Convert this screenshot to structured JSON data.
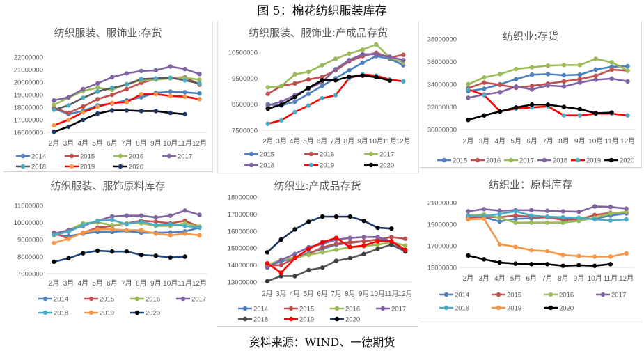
{
  "figure_title": "图 5：棉花纺织服装库存",
  "source": "资料来源：WIND、一德期货",
  "months": [
    "2月",
    "3月",
    "4月",
    "5月",
    "6月",
    "7月",
    "8月",
    "9月",
    "10月",
    "11月",
    "12月"
  ],
  "chart_data": [
    {
      "type": "line",
      "title": "纺织服装、服饰业:存货",
      "xlabel": "",
      "ylabel": "",
      "ylim": [
        16000000,
        22000000
      ],
      "yticks": [
        "16000000",
        "17000000",
        "18000000",
        "19000000",
        "20000000",
        "21000000",
        "22000000"
      ],
      "grid": false,
      "legend": "bottom",
      "legend_columns": 4,
      "series": [
        {
          "name": "2014",
          "color": "#4f81bd",
          "marker": "#4f81bd",
          "values": [
            17900000,
            17450000,
            17700000,
            18150000,
            18300000,
            18550000,
            18800000,
            19150000,
            19250000,
            19200000,
            19100000
          ]
        },
        {
          "name": "2015",
          "color": "#c0504d",
          "marker": "#c0504d",
          "values": [
            17950000,
            17550000,
            18050000,
            18650000,
            19000000,
            19450000,
            19950000,
            20250000,
            20350000,
            20400000,
            19800000
          ]
        },
        {
          "name": "2016",
          "color": "#9bbb59",
          "marker": "#9bbb59",
          "values": [
            18200000,
            18750000,
            19300000,
            19550000,
            19400000,
            19850000,
            20150000,
            20200000,
            20300000,
            20350000,
            20200000
          ]
        },
        {
          "name": "2017",
          "color": "#8064a2",
          "marker": "#8064a2",
          "values": [
            18550000,
            18800000,
            19450000,
            19900000,
            20400000,
            20700000,
            20900000,
            20950000,
            21250000,
            21050000,
            20650000
          ]
        },
        {
          "name": "2018",
          "color": "#595959",
          "marker": "#4bacc6",
          "values": [
            17800000,
            18150000,
            18750000,
            19250000,
            19550000,
            19800000,
            20250000,
            20300000,
            20350000,
            20150000,
            19900000
          ]
        },
        {
          "name": "2019",
          "color": "#ff0000",
          "marker": "#f79646",
          "values": [
            16550000,
            17000000,
            17600000,
            18050000,
            18350000,
            18400000,
            19050000,
            19050000,
            18900000,
            18850000,
            18650000
          ]
        },
        {
          "name": "2020",
          "color": "#000000",
          "marker": "#1f3864",
          "values": [
            16050000,
            16450000,
            17000000,
            17500000,
            17750000,
            17750000,
            17700000,
            17700000,
            17550000,
            17450000,
            null
          ]
        }
      ]
    },
    {
      "type": "line",
      "title": "纺织服装、服饰业:产成品存货",
      "xlabel": "",
      "ylabel": "",
      "ylim": [
        7500000,
        10500000
      ],
      "yticks": [
        "7500000",
        "8500000",
        "9500000",
        "10500000"
      ],
      "grid": false,
      "legend": "bottom",
      "legend_columns": 3,
      "series": [
        {
          "name": "2015",
          "color": "#4f81bd",
          "marker": "#4f81bd",
          "values": [
            8500000,
            8450000,
            8600000,
            8900000,
            9200000,
            9500000,
            9800000,
            10100000,
            10350000,
            10250000,
            10000000
          ]
        },
        {
          "name": "2016",
          "color": "#c0504d",
          "marker": "#c0504d",
          "values": [
            8900000,
            9200000,
            9300000,
            9450000,
            9550000,
            9800000,
            10150000,
            10350000,
            10480000,
            10300000,
            10400000
          ]
        },
        {
          "name": "2017",
          "color": "#9bbb59",
          "marker": "#9bbb59",
          "values": [
            9150000,
            9200000,
            9650000,
            9750000,
            10000000,
            10250000,
            10450000,
            10600000,
            10800000,
            10300000,
            10100000
          ]
        },
        {
          "name": "2018",
          "color": "#8064a2",
          "marker": "#8064a2",
          "values": [
            8450000,
            8600000,
            8850000,
            9100000,
            9350000,
            9850000,
            10200000,
            10420000,
            10420000,
            10330000,
            10200000
          ]
        },
        {
          "name": "2019",
          "color": "#ff0000",
          "marker": "#4bacc6",
          "values": [
            7750000,
            7880000,
            8200000,
            8450000,
            8730000,
            8850000,
            9500000,
            9650000,
            9600000,
            9450000,
            9380000
          ]
        },
        {
          "name": "2020",
          "color": "#000000",
          "marker": "#000000",
          "values": [
            8330000,
            8480000,
            8780000,
            9130000,
            9420000,
            9420000,
            9560000,
            9600000,
            9540000,
            9410000,
            null
          ]
        }
      ]
    },
    {
      "type": "line",
      "title": "纺织业:存货",
      "xlabel": "",
      "ylabel": "",
      "ylim": [
        30000000,
        38000000
      ],
      "yticks": [
        "30000000",
        "32000000",
        "34000000",
        "36000000",
        "38000000"
      ],
      "grid": false,
      "legend": "bottom",
      "legend_columns": 6,
      "series": [
        {
          "name": "2015",
          "color": "#4f81bd",
          "marker": "#4f81bd",
          "values": [
            33400000,
            33600000,
            34000000,
            34450000,
            34850000,
            34900000,
            34800000,
            34850000,
            35300000,
            35550000,
            35600000
          ]
        },
        {
          "name": "2016",
          "color": "#c0504d",
          "marker": "#c0504d",
          "values": [
            33650000,
            34150000,
            33950000,
            33700000,
            33850000,
            34050000,
            34250000,
            34450000,
            34750000,
            35300000,
            35200000
          ]
        },
        {
          "name": "2017",
          "color": "#9bbb59",
          "marker": "#9bbb59",
          "values": [
            34000000,
            34600000,
            34900000,
            35350000,
            35500000,
            35650000,
            35700000,
            35700000,
            36250000,
            35950000,
            35200000
          ]
        },
        {
          "name": "2018",
          "color": "#8064a2",
          "marker": "#8064a2",
          "values": [
            32800000,
            33100000,
            33300000,
            33800000,
            33550000,
            33900000,
            33800000,
            34150000,
            34400000,
            34500000,
            34250000
          ]
        },
        {
          "name": "2019",
          "color": "#ff0000",
          "marker": "#4bacc6",
          "values": [
            33550000,
            33050000,
            31600000,
            31850000,
            31950000,
            32050000,
            31250000,
            31250000,
            31400000,
            31400000,
            31250000
          ]
        },
        {
          "name": "2020",
          "color": "#000000",
          "marker": "#000000",
          "values": [
            30850000,
            31250000,
            31600000,
            31950000,
            32200000,
            32200000,
            32000000,
            31800000,
            31450000,
            31500000,
            null
          ]
        }
      ]
    },
    {
      "type": "line",
      "title": "纺织服装、服饰原料库存",
      "xlabel": "",
      "ylabel": "",
      "ylim": [
        7000000,
        11000000
      ],
      "yticks": [
        "7000000",
        "8000000",
        "9000000",
        "10000000",
        "11000000"
      ],
      "grid": false,
      "legend": "bottom",
      "legend_columns": 4,
      "series": [
        {
          "name": "2014",
          "color": "#4f81bd",
          "marker": "#4f81bd",
          "values": [
            9300000,
            9200000,
            9350000,
            9450000,
            9450000,
            9500000,
            9400000,
            9400000,
            9420000,
            9480000,
            9700000
          ]
        },
        {
          "name": "2015",
          "color": "#c0504d",
          "marker": "#c0504d",
          "values": [
            9400000,
            9050000,
            9400000,
            9700000,
            9800000,
            9950000,
            10100000,
            10050000,
            9950000,
            10100000,
            9750000
          ]
        },
        {
          "name": "2016",
          "color": "#9bbb59",
          "marker": "#9bbb59",
          "values": [
            9250000,
            9550000,
            9950000,
            10000000,
            9850000,
            9950000,
            9950000,
            9800000,
            9800000,
            9950000,
            9750000
          ]
        },
        {
          "name": "2017",
          "color": "#8064a2",
          "marker": "#8064a2",
          "values": [
            9350000,
            9550000,
            9800000,
            10100000,
            10350000,
            10400000,
            10400000,
            10300000,
            10400000,
            10700000,
            10450000
          ]
        },
        {
          "name": "2018",
          "color": "#4bacc6",
          "marker": "#4bacc6",
          "values": [
            9300000,
            9450000,
            9850000,
            10100000,
            10150000,
            9900000,
            10050000,
            9850000,
            9900000,
            9800000,
            9700000
          ]
        },
        {
          "name": "2019",
          "color": "#f79646",
          "marker": "#f79646",
          "values": [
            8800000,
            9050000,
            9400000,
            9600000,
            9600000,
            9550000,
            9550000,
            9350000,
            9250000,
            9350000,
            9250000
          ]
        },
        {
          "name": "2020",
          "color": "#1f497d",
          "marker": "#000000",
          "values": [
            7700000,
            7900000,
            8200000,
            8350000,
            8300000,
            8300000,
            8100000,
            8050000,
            7950000,
            8000000,
            null
          ]
        }
      ]
    },
    {
      "type": "line",
      "title": "纺织业:产成品存货",
      "xlabel": "",
      "ylabel": "",
      "ylim": [
        13000000,
        18000000
      ],
      "yticks": [
        "13000000",
        "14000000",
        "15000000",
        "16000000",
        "17000000",
        "18000000"
      ],
      "grid": false,
      "legend": "bottom",
      "legend_columns": 4,
      "series": [
        {
          "name": "2014",
          "color": "#4f81bd",
          "marker": "#4f81bd",
          "values": [
            13950000,
            14200000,
            14450000,
            14700000,
            14950000,
            15200000,
            15300000,
            15400000,
            15500000,
            15400000,
            14850000
          ]
        },
        {
          "name": "2015",
          "color": "#c0504d",
          "marker": "#c0504d",
          "values": [
            13950000,
            14000000,
            14400000,
            14650000,
            15050000,
            15250000,
            15350000,
            15400000,
            15500000,
            15650000,
            15550000
          ]
        },
        {
          "name": "2016",
          "color": "#9bbb59",
          "marker": "#9bbb59",
          "values": [
            14000000,
            14300000,
            14450000,
            14600000,
            14750000,
            14900000,
            15050000,
            15100000,
            15200000,
            15350000,
            15150000
          ]
        },
        {
          "name": "2017",
          "color": "#8064a2",
          "marker": "#8064a2",
          "values": [
            13850000,
            14300000,
            14650000,
            15050000,
            15250000,
            15500000,
            15600000,
            15650000,
            15650000,
            15400000,
            14800000
          ]
        },
        {
          "name": "2018",
          "color": "#595959",
          "marker": "#404040",
          "values": [
            13050000,
            13350000,
            13350000,
            13700000,
            13850000,
            14250000,
            14400000,
            14650000,
            14950000,
            15200000,
            14800000
          ]
        },
        {
          "name": "2019",
          "color": "#ff0000",
          "marker": "#ff0000",
          "values": [
            14100000,
            13550000,
            14400000,
            14950000,
            15350000,
            15600000,
            15050000,
            15150000,
            15400000,
            15400000,
            14900000
          ]
        },
        {
          "name": "2020",
          "color": "#1f3864",
          "marker": "#000000",
          "values": [
            14750000,
            15500000,
            16100000,
            16550000,
            16850000,
            16850000,
            16850000,
            16600000,
            16200000,
            16150000,
            null
          ]
        }
      ]
    },
    {
      "type": "line",
      "title": "纺织业：原料库存",
      "xlabel": "",
      "ylabel": "",
      "ylim": [
        15000000,
        21000000
      ],
      "yticks": [
        "15000000",
        "17000000",
        "19000000",
        "21000000"
      ],
      "grid": false,
      "legend": "bottom",
      "legend_columns": 4,
      "series": [
        {
          "name": "2014",
          "color": "#4f81bd",
          "marker": "#4f81bd",
          "values": [
            19700000,
            19650000,
            19250000,
            19500000,
            19550000,
            19650000,
            19600000,
            19550000,
            19500000,
            19800000,
            20000000
          ]
        },
        {
          "name": "2015",
          "color": "#c0504d",
          "marker": "#c0504d",
          "values": [
            19600000,
            19700000,
            19650000,
            19800000,
            19700000,
            19650000,
            19400000,
            19450000,
            19850000,
            20050000,
            20100000
          ]
        },
        {
          "name": "2016",
          "color": "#9bbb59",
          "marker": "#9bbb59",
          "values": [
            19800000,
            19900000,
            19600000,
            19150000,
            19150000,
            19150000,
            19150000,
            19300000,
            19600000,
            20000000,
            20150000
          ]
        },
        {
          "name": "2017",
          "color": "#8064a2",
          "marker": "#8064a2",
          "values": [
            20200000,
            20400000,
            20250000,
            20300000,
            20300000,
            20250000,
            20200000,
            20150000,
            20650000,
            20600000,
            20450000
          ]
        },
        {
          "name": "2018",
          "color": "#4bacc6",
          "marker": "#4bacc6",
          "values": [
            19800000,
            19750000,
            19950000,
            20200000,
            19800000,
            19700000,
            19650000,
            19600000,
            19450000,
            19350000,
            19450000
          ]
        },
        {
          "name": "2019",
          "color": "#f79646",
          "marker": "#f79646",
          "values": [
            19450000,
            19500000,
            17150000,
            16900000,
            16600000,
            16500000,
            16150000,
            16050000,
            16000000,
            16000000,
            16300000
          ]
        },
        {
          "name": "2020",
          "color": "#000000",
          "marker": "#000000",
          "values": [
            16100000,
            15750000,
            15450000,
            15350000,
            15300000,
            15300000,
            15150000,
            15200000,
            15150000,
            15300000,
            null
          ]
        }
      ]
    }
  ]
}
